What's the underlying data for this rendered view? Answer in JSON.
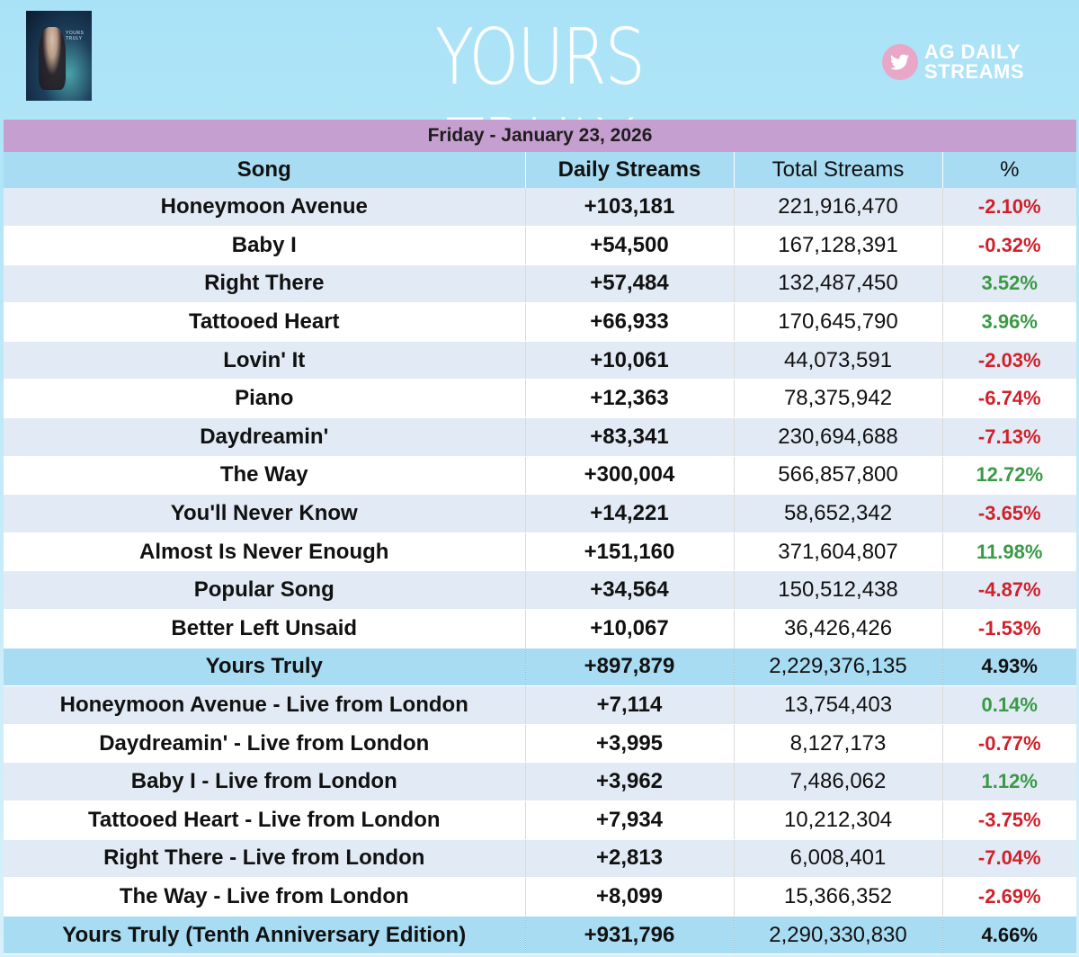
{
  "header": {
    "title": "YOURS TRULY",
    "brand_line1": "AG DAILY",
    "brand_line2": "STREAMS",
    "album_mini_title": "YOURS TRULY"
  },
  "colors": {
    "background": "#a9e2f7",
    "date_bar": "#c59fcf",
    "header_row": "#a8dcf3",
    "positive": "#3a9a45",
    "negative": "#d2202a"
  },
  "chart_data": {
    "type": "table",
    "date": "Friday - January 23, 2026",
    "columns": [
      "Song",
      "Daily Streams",
      "Total Streams",
      "%"
    ],
    "rows": [
      {
        "song": "Honeymoon Avenue",
        "daily": "+103,181",
        "total": "221,916,470",
        "pct": "-2.10%",
        "kind": "song"
      },
      {
        "song": "Baby I",
        "daily": "+54,500",
        "total": "167,128,391",
        "pct": "-0.32%",
        "kind": "song"
      },
      {
        "song": "Right There",
        "daily": "+57,484",
        "total": "132,487,450",
        "pct": "3.52%",
        "kind": "song"
      },
      {
        "song": "Tattooed Heart",
        "daily": "+66,933",
        "total": "170,645,790",
        "pct": "3.96%",
        "kind": "song"
      },
      {
        "song": "Lovin' It",
        "daily": "+10,061",
        "total": "44,073,591",
        "pct": "-2.03%",
        "kind": "song"
      },
      {
        "song": "Piano",
        "daily": "+12,363",
        "total": "78,375,942",
        "pct": "-6.74%",
        "kind": "song"
      },
      {
        "song": "Daydreamin'",
        "daily": "+83,341",
        "total": "230,694,688",
        "pct": "-7.13%",
        "kind": "song"
      },
      {
        "song": "The Way",
        "daily": "+300,004",
        "total": "566,857,800",
        "pct": "12.72%",
        "kind": "song"
      },
      {
        "song": "You'll Never Know",
        "daily": "+14,221",
        "total": "58,652,342",
        "pct": "-3.65%",
        "kind": "song"
      },
      {
        "song": "Almost Is Never Enough",
        "daily": "+151,160",
        "total": "371,604,807",
        "pct": "11.98%",
        "kind": "song"
      },
      {
        "song": "Popular Song",
        "daily": "+34,564",
        "total": "150,512,438",
        "pct": "-4.87%",
        "kind": "song"
      },
      {
        "song": "Better Left Unsaid",
        "daily": "+10,067",
        "total": "36,426,426",
        "pct": "-1.53%",
        "kind": "song"
      },
      {
        "song": "Yours Truly",
        "daily": "+897,879",
        "total": "2,229,376,135",
        "pct": "4.93%",
        "kind": "total"
      },
      {
        "song": "Honeymoon Avenue - Live from London",
        "daily": "+7,114",
        "total": "13,754,403",
        "pct": "0.14%",
        "kind": "song"
      },
      {
        "song": "Daydreamin' - Live from London",
        "daily": "+3,995",
        "total": "8,127,173",
        "pct": "-0.77%",
        "kind": "song"
      },
      {
        "song": "Baby I - Live from London",
        "daily": "+3,962",
        "total": "7,486,062",
        "pct": "1.12%",
        "kind": "song"
      },
      {
        "song": "Tattooed Heart - Live from London",
        "daily": "+7,934",
        "total": "10,212,304",
        "pct": "-3.75%",
        "kind": "song"
      },
      {
        "song": "Right There - Live from London",
        "daily": "+2,813",
        "total": "6,008,401",
        "pct": "-7.04%",
        "kind": "song"
      },
      {
        "song": "The Way - Live from London",
        "daily": "+8,099",
        "total": "15,366,352",
        "pct": "-2.69%",
        "kind": "song"
      },
      {
        "song": "Yours Truly (Tenth Anniversary Edition)",
        "daily": "+931,796",
        "total": "2,290,330,830",
        "pct": "4.66%",
        "kind": "total"
      }
    ]
  }
}
